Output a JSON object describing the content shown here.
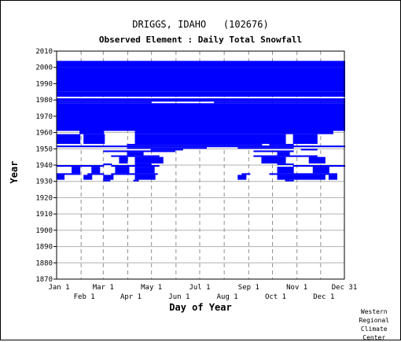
{
  "chart_data": {
    "type": "heatmap",
    "title": "DRIGGS, IDAHO   (102676)",
    "subtitle": "Observed Element : Daily Total Snowfall",
    "xlabel": "Day of Year",
    "ylabel": "Year",
    "x_ticks_top": [
      "Jan 1",
      "Mar 1",
      "May 1",
      "Jul 1",
      "Sep 1",
      "Nov 1",
      "Dec 31"
    ],
    "x_ticks_bottom": [
      "Feb 1",
      "Apr 1",
      "Jun 1",
      "Aug 1",
      "Oct 1",
      "Dec 1"
    ],
    "y_ticks": [
      "2010",
      "2000",
      "1990",
      "1980",
      "1970",
      "1960",
      "1950",
      "1940",
      "1930",
      "1920",
      "1910",
      "1900",
      "1890",
      "1880",
      "1870"
    ],
    "ylim": [
      1870,
      2010
    ],
    "xlim_day_of_year": [
      1,
      365
    ],
    "grid": true,
    "cell_color": "#0000ff",
    "observed_coverage": [
      {
        "years": [
          1930,
          1930
        ],
        "ranges": [
          [
            60,
            68
          ],
          [
            98,
            104
          ],
          [
            290,
            300
          ]
        ]
      },
      {
        "years": [
          1931,
          1933
        ],
        "ranges": [
          [
            1,
            10
          ],
          [
            35,
            45
          ],
          [
            60,
            72
          ],
          [
            100,
            125
          ],
          [
            230,
            240
          ],
          [
            280,
            340
          ],
          [
            345,
            355
          ]
        ]
      },
      {
        "years": [
          1934,
          1934
        ],
        "ranges": [
          [
            1,
            30
          ],
          [
            40,
            60
          ],
          [
            70,
            128
          ],
          [
            235,
            245
          ],
          [
            270,
            355
          ]
        ]
      },
      {
        "years": [
          1935,
          1938
        ],
        "ranges": [
          [
            20,
            30
          ],
          [
            45,
            55
          ],
          [
            75,
            92
          ],
          [
            100,
            124
          ],
          [
            280,
            300
          ],
          [
            325,
            345
          ]
        ]
      },
      {
        "years": [
          1939,
          1939
        ],
        "ranges": [
          [
            1,
            60
          ],
          [
            70,
            130
          ],
          [
            300,
            365
          ]
        ]
      },
      {
        "years": [
          1940,
          1940
        ],
        "ranges": [
          [
            60,
            70
          ],
          [
            100,
            120
          ],
          [
            280,
            300
          ]
        ]
      },
      {
        "years": [
          1941,
          1944
        ],
        "ranges": [
          [
            80,
            90
          ],
          [
            100,
            135
          ],
          [
            260,
            290
          ],
          [
            320,
            340
          ]
        ]
      },
      {
        "years": [
          1945,
          1945
        ],
        "ranges": [
          [
            70,
            130
          ],
          [
            250,
            330
          ]
        ]
      },
      {
        "years": [
          1946,
          1947
        ],
        "ranges": [
          [
            90,
            110
          ],
          [
            280,
            295
          ]
        ]
      },
      {
        "years": [
          1948,
          1948
        ],
        "ranges": [
          [
            60,
            150
          ],
          [
            250,
            300
          ]
        ]
      },
      {
        "years": [
          1949,
          1949
        ],
        "ranges": [
          [
            120,
            160
          ],
          [
            310,
            330
          ]
        ]
      },
      {
        "years": [
          1950,
          1950
        ],
        "ranges": [
          [
            90,
            190
          ],
          [
            230,
            300
          ]
        ]
      },
      {
        "years": [
          1951,
          1951
        ],
        "ranges": [
          [
            1,
            365
          ]
        ]
      },
      {
        "years": [
          1952,
          1952
        ],
        "ranges": [
          [
            90,
            260
          ],
          [
            270,
            300
          ]
        ]
      },
      {
        "years": [
          1953,
          1958
        ],
        "ranges": [
          [
            1,
            30
          ],
          [
            35,
            61
          ],
          [
            100,
            290
          ],
          [
            300,
            330
          ]
        ]
      },
      {
        "years": [
          1959,
          1960
        ],
        "ranges": [
          [
            30,
            60
          ],
          [
            100,
            350
          ]
        ]
      },
      {
        "years": [
          1961,
          1977
        ],
        "ranges": [
          [
            1,
            365
          ]
        ]
      },
      {
        "years": [
          1978,
          1978
        ],
        "ranges": [
          [
            1,
            120
          ],
          [
            200,
            365
          ]
        ]
      },
      {
        "years": [
          1979,
          1979
        ],
        "ranges": [
          [
            1,
            365
          ]
        ]
      },
      {
        "years": [
          1980,
          1980
        ],
        "ranges": [
          [
            1,
            365
          ]
        ]
      },
      {
        "years": [
          1982,
          1984
        ],
        "ranges": [
          [
            1,
            365
          ]
        ]
      },
      {
        "years": [
          1985,
          1999
        ],
        "ranges": [
          [
            1,
            365
          ]
        ]
      },
      {
        "years": [
          2000,
          2003
        ],
        "ranges": [
          [
            1,
            365
          ]
        ]
      }
    ]
  },
  "credit": {
    "line1": "Western",
    "line2": "Regional",
    "line3": "Climate",
    "line4": "Center"
  }
}
